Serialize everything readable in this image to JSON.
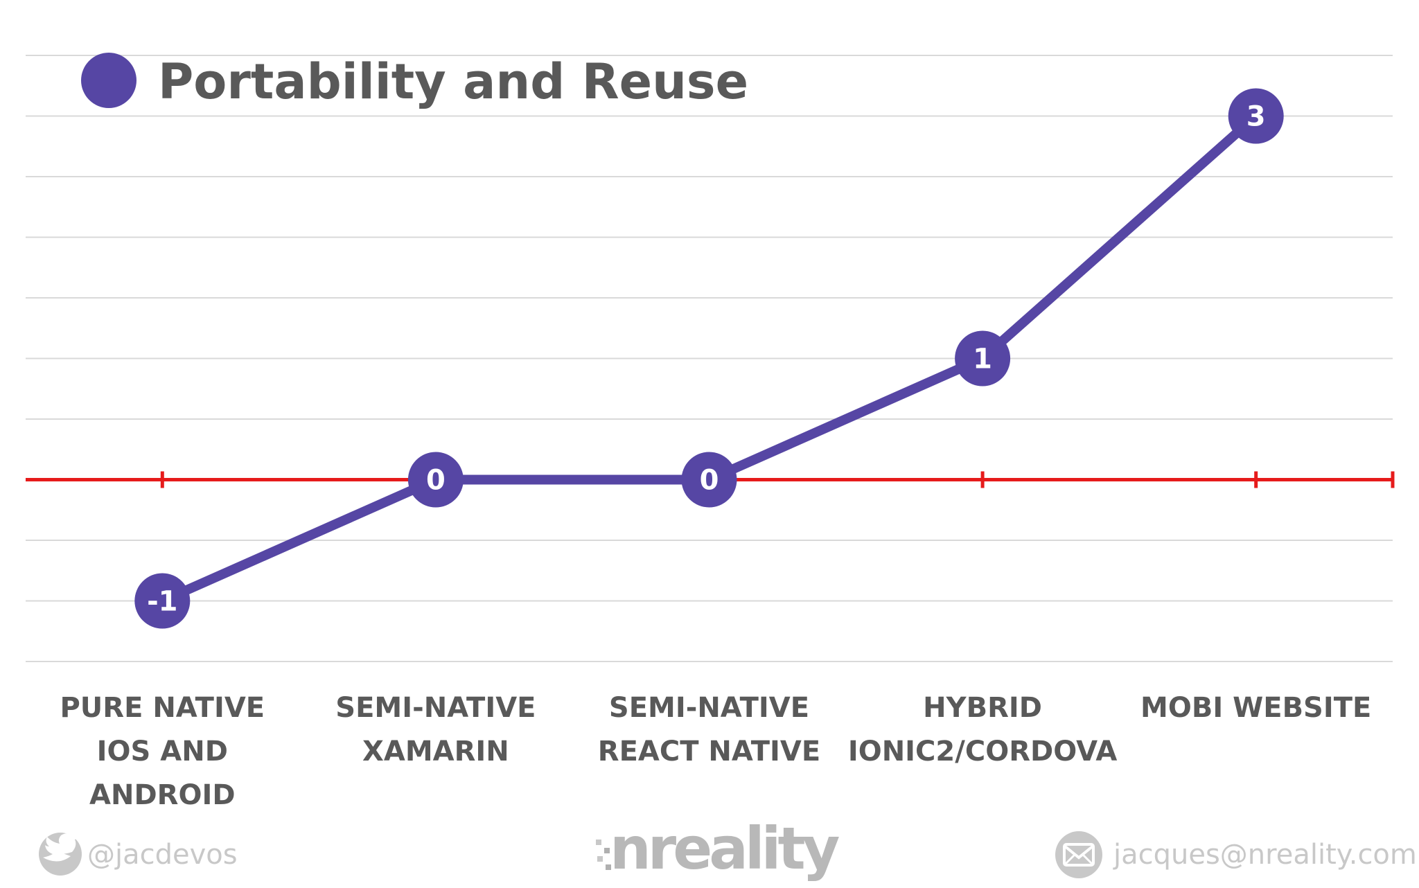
{
  "chart_data": {
    "type": "line",
    "title": "Portability and Reuse",
    "categories": [
      [
        "PURE NATIVE",
        "IOS AND",
        "ANDROID"
      ],
      [
        "SEMI-NATIVE",
        "XAMARIN"
      ],
      [
        "SEMI-NATIVE",
        "REACT NATIVE"
      ],
      [
        "HYBRID",
        "IONIC2/CORDOVA"
      ],
      [
        "MOBI  WEBSITE"
      ]
    ],
    "series": [
      {
        "name": "Portability and Reuse",
        "values": [
          -1,
          0,
          0,
          1,
          3
        ],
        "data_labels": [
          "-1",
          "0",
          "0",
          "1",
          "3"
        ]
      }
    ],
    "ylim": [
      -1.5,
      3.5
    ],
    "grid": true,
    "legend": "top-left",
    "colors": {
      "series": "#5646a4",
      "zero_line": "#e61b1b",
      "grid": "#d9d9d9",
      "text": "#595959"
    }
  },
  "footer": {
    "twitter_handle": "@jacdevos",
    "logo_text": "nreality",
    "email": "jacques@nreality.com",
    "twitter_icon": "twitter-bird-icon",
    "email_icon": "envelope-icon"
  }
}
